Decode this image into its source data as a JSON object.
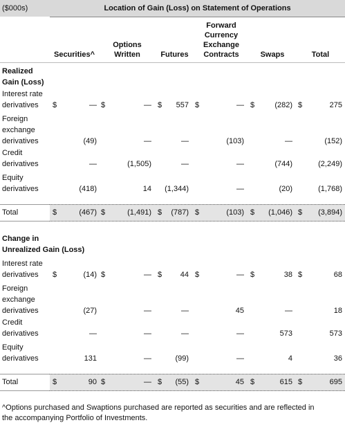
{
  "unit_label": "($000s)",
  "group_header": "Location of Gain (Loss) on Statement of Operations",
  "currency_symbol": "$",
  "columns": [
    [
      "Securities^"
    ],
    [
      "Options",
      "Written"
    ],
    [
      "Futures"
    ],
    [
      "Forward",
      "Currency",
      "Exchange",
      "Contracts"
    ],
    [
      "Swaps"
    ],
    [
      "Total"
    ]
  ],
  "sections": [
    {
      "title": [
        "Realized",
        "Gain (Loss)"
      ],
      "rows": [
        {
          "label": [
            "Interest rate",
            "derivatives"
          ],
          "cells": [
            "—",
            "—",
            "557",
            "—",
            "(282)",
            "275"
          ]
        },
        {
          "label": [
            "Foreign",
            "exchange",
            "derivatives"
          ],
          "cells": [
            "(49)",
            "—",
            "—",
            "(103)",
            "—",
            "(152)"
          ]
        },
        {
          "label": [
            "Credit",
            "derivatives"
          ],
          "cells": [
            "—",
            "(1,505)",
            "—",
            "—",
            "(744)",
            "(2,249)"
          ]
        },
        {
          "label": [
            "Equity",
            "derivatives"
          ],
          "cells": [
            "(418)",
            "14",
            "(1,344)",
            "—",
            "(20)",
            "(1,768)"
          ]
        }
      ],
      "total": {
        "label": [
          "Total"
        ],
        "cells": [
          "(467)",
          "(1,491)",
          "(787)",
          "(103)",
          "(1,046)",
          "(3,894)"
        ]
      }
    },
    {
      "title": [
        "Change in",
        "Unrealized Gain (Loss)"
      ],
      "rows": [
        {
          "label": [
            "Interest rate",
            "derivatives"
          ],
          "cells": [
            "(14)",
            "—",
            "44",
            "—",
            "38",
            "68"
          ]
        },
        {
          "label": [
            "Foreign",
            "exchange",
            "derivatives"
          ],
          "cells": [
            "(27)",
            "—",
            "—",
            "45",
            "—",
            "18"
          ]
        },
        {
          "label": [
            "Credit",
            "derivatives"
          ],
          "cells": [
            "—",
            "—",
            "—",
            "—",
            "573",
            "573"
          ]
        },
        {
          "label": [
            "Equity",
            "derivatives"
          ],
          "cells": [
            "131",
            "—",
            "(99)",
            "—",
            "4",
            "36"
          ]
        }
      ],
      "total": {
        "label": [
          "Total"
        ],
        "cells": [
          "90",
          "—",
          "(55)",
          "45",
          "615",
          "695"
        ]
      }
    }
  ],
  "footnote": [
    "^Options purchased and Swaptions purchased are reported as securities and are reflected in",
    "the accompanying Portfolio of Investments."
  ]
}
